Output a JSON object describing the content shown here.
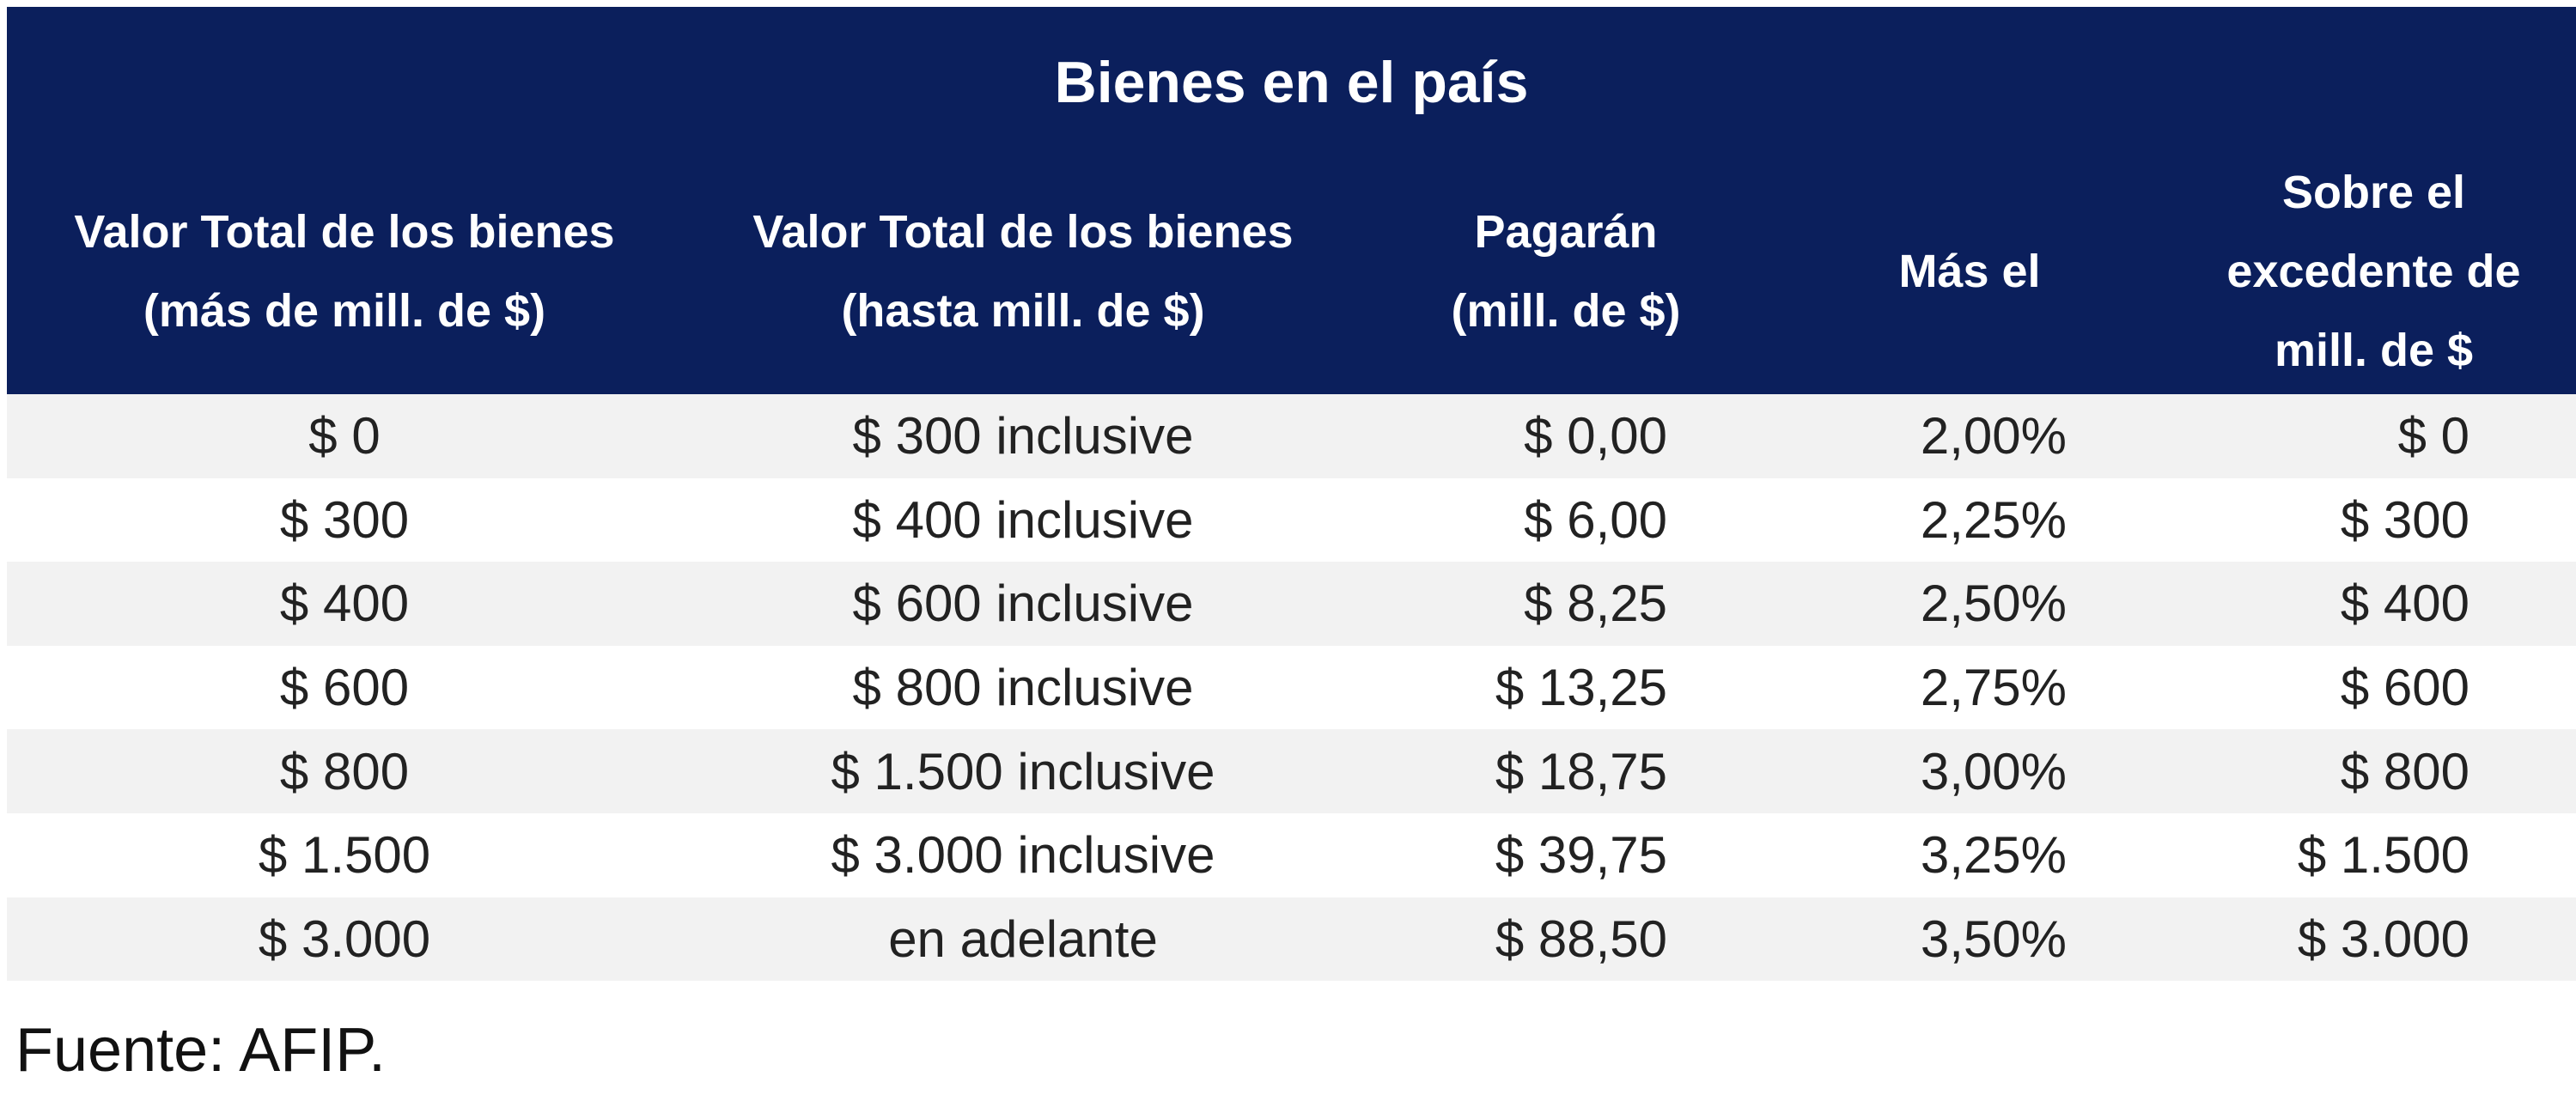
{
  "table": {
    "title": "Bienes en el país",
    "headers": [
      [
        "Valor Total de los bienes",
        "(más de mill. de $)"
      ],
      [
        "Valor Total de los bienes",
        "(hasta mill. de $)"
      ],
      [
        "Pagarán",
        "(mill. de $)"
      ],
      [
        "Más el"
      ],
      [
        "Sobre el",
        "excedente de",
        "mill. de $"
      ]
    ],
    "rows": [
      [
        "$ 0",
        "$ 300 inclusive",
        "$ 0,00",
        "2,00%",
        "$ 0"
      ],
      [
        "$ 300",
        "$ 400 inclusive",
        "$ 6,00",
        "2,25%",
        "$ 300"
      ],
      [
        "$ 400",
        "$ 600 inclusive",
        "$ 8,25",
        "2,50%",
        "$ 400"
      ],
      [
        "$ 600",
        "$ 800 inclusive",
        "$ 13,25",
        "2,75%",
        "$ 600"
      ],
      [
        "$ 800",
        "$ 1.500 inclusive",
        "$ 18,75",
        "3,00%",
        "$ 800"
      ],
      [
        "$ 1.500",
        "$ 3.000 inclusive",
        "$ 39,75",
        "3,25%",
        "$ 1.500"
      ],
      [
        "$ 3.000",
        "en adelante",
        "$ 88,50",
        "3,50%",
        "$ 3.000"
      ]
    ]
  },
  "footer": "Fuente: AFIP."
}
